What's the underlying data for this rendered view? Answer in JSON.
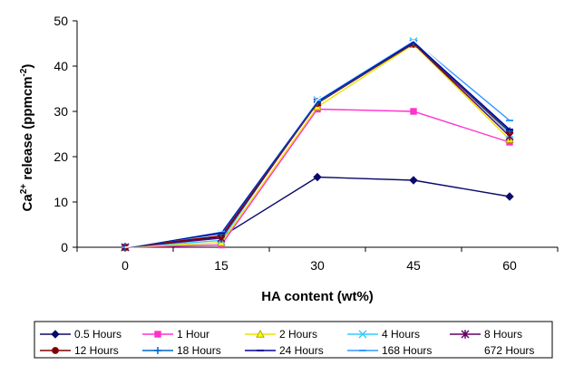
{
  "chart_data": {
    "type": "line",
    "xlabel": "HA content (wt%)",
    "ylabel_main": "Ca",
    "ylabel_sup": "2+",
    "ylabel_rest": " release (ppmcm",
    "ylabel_sup2": "-2",
    "ylabel_end": ")",
    "categories": [
      "0",
      "15",
      "30",
      "45",
      "60"
    ],
    "ylim": [
      0,
      50
    ],
    "yticks": [
      0,
      10,
      20,
      30,
      40,
      50
    ],
    "grid": false,
    "legend_position": "bottom",
    "series": [
      {
        "name": "0.5 Hours",
        "values": [
          0,
          2.3,
          15.5,
          14.8,
          11.2
        ],
        "color": "#0a0a6a",
        "marker": "diamond"
      },
      {
        "name": "1 Hour",
        "values": [
          0,
          0.5,
          30.5,
          30.0,
          23.2
        ],
        "color": "#ff33cc",
        "marker": "square"
      },
      {
        "name": "2 Hours",
        "values": [
          0,
          1.0,
          31.0,
          44.8,
          23.8
        ],
        "color": "#ffff00",
        "marker": "triangle"
      },
      {
        "name": "4 Hours",
        "values": [
          0,
          1.5,
          32.5,
          45.5,
          25.0
        ],
        "color": "#33ccff",
        "marker": "x"
      },
      {
        "name": "8 Hours",
        "values": [
          0,
          2.0,
          32.0,
          45.0,
          24.5
        ],
        "color": "#660066",
        "marker": "star"
      },
      {
        "name": "12 Hours",
        "values": [
          0,
          2.5,
          31.8,
          45.0,
          25.5
        ],
        "color": "#800000",
        "marker": "circle"
      },
      {
        "name": "18 Hours",
        "values": [
          0,
          3.0,
          32.0,
          45.2,
          25.8
        ],
        "color": "#0066cc",
        "marker": "plus"
      },
      {
        "name": "24 Hours",
        "values": [
          0,
          3.2,
          32.2,
          45.3,
          26.0
        ],
        "color": "#000099",
        "marker": "dash"
      },
      {
        "name": "168 Hours",
        "values": [
          0,
          3.5,
          32.4,
          45.6,
          28.0
        ],
        "color": "#3399ff",
        "marker": "dash"
      },
      {
        "name": "672 Hours",
        "values": [
          0,
          3.6,
          32.6,
          45.8,
          26.5
        ],
        "color": "#ffffff",
        "marker": "none"
      }
    ]
  }
}
